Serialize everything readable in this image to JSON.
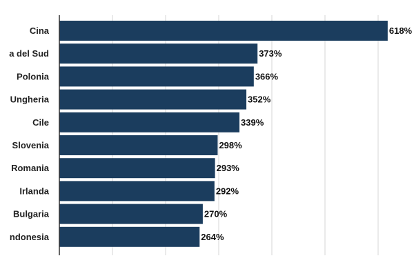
{
  "chart_data": {
    "type": "bar",
    "orientation": "horizontal",
    "categories": [
      "Cina",
      "a del Sud",
      "Polonia",
      "Ungheria",
      "Cile",
      "Slovenia",
      "Romania",
      "Irlanda",
      "Bulgaria",
      "ndonesia"
    ],
    "values": [
      618,
      373,
      366,
      352,
      339,
      298,
      293,
      292,
      270,
      264
    ],
    "value_labels": [
      "618%",
      "373%",
      "366%",
      "352%",
      "339%",
      "298%",
      "293%",
      "292%",
      "270%",
      "264%"
    ],
    "title": "",
    "xlabel": "",
    "ylabel": "",
    "xlim": [
      0,
      700
    ],
    "grid": true,
    "legend": "none",
    "bar_color": "#1b3d5e"
  }
}
